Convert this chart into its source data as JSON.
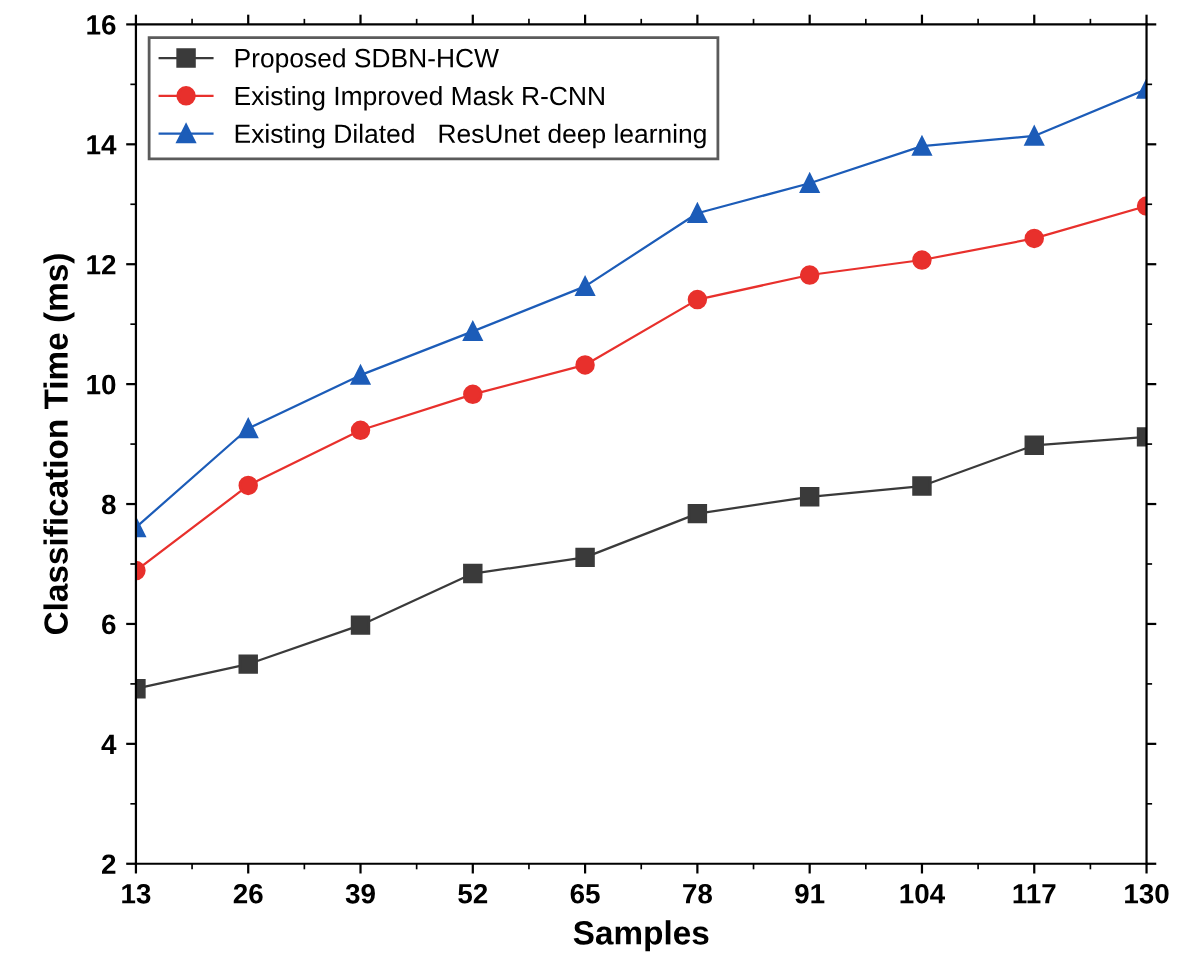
{
  "chart_data": {
    "type": "line",
    "xlabel": "Samples",
    "ylabel": "Classification Time (ms)",
    "x": [
      13,
      26,
      39,
      52,
      65,
      78,
      91,
      104,
      117,
      130
    ],
    "series": [
      {
        "name": "Proposed SDBN-HCW",
        "color": "#3a3a3a",
        "marker": "square",
        "values": [
          4.92,
          5.33,
          5.98,
          6.84,
          7.11,
          7.84,
          8.12,
          8.3,
          8.98,
          9.12
        ]
      },
      {
        "name": "Existing Improved Mask R-CNN",
        "color": "#e8302c",
        "marker": "circle",
        "values": [
          6.89,
          8.31,
          9.23,
          9.83,
          10.32,
          11.41,
          11.82,
          12.07,
          12.43,
          12.97
        ]
      },
      {
        "name": "Existing Dilated   ResUnet deep learning",
        "color": "#1c5cb8",
        "marker": "triangle",
        "values": [
          7.61,
          9.26,
          10.15,
          10.88,
          11.63,
          12.85,
          13.35,
          13.97,
          14.14,
          14.92
        ]
      }
    ],
    "xlim": [
      13,
      130
    ],
    "xticks": [
      13,
      26,
      39,
      52,
      65,
      78,
      91,
      104,
      117,
      130
    ],
    "ylim": [
      2,
      16
    ],
    "yticks": [
      2,
      4,
      6,
      8,
      10,
      12,
      14,
      16
    ],
    "grid": false,
    "legend": "top left",
    "line_style": "solid"
  }
}
